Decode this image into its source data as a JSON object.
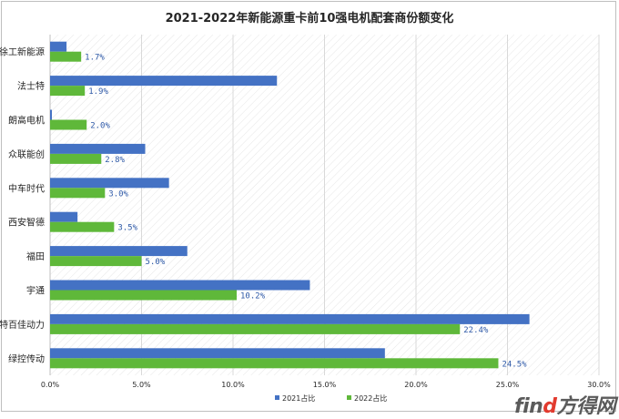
{
  "chart_data": {
    "type": "bar",
    "orientation": "horizontal",
    "title": "2021-2022年新能源重卡前10强电机配套商份额变化",
    "categories": [
      "徐工新能源",
      "法士特",
      "朗高电机",
      "众联能创",
      "中车时代",
      "西安智德",
      "福田",
      "宇通",
      "特百佳动力",
      "绿控传动"
    ],
    "series": [
      {
        "name": "2021占比",
        "color": "#4472c4",
        "values": [
          0.9,
          12.4,
          0.1,
          5.2,
          6.5,
          1.5,
          7.5,
          14.2,
          26.2,
          18.3
        ]
      },
      {
        "name": "2022占比",
        "color": "#5fb83a",
        "values": [
          1.7,
          1.9,
          2.0,
          2.8,
          3.0,
          3.5,
          5.0,
          10.2,
          22.4,
          24.5
        ]
      }
    ],
    "data_labels_series": "2022占比",
    "data_labels": [
      "1.7%",
      "1.9%",
      "2.0%",
      "2.8%",
      "3.0%",
      "3.5%",
      "5.0%",
      "10.2%",
      "22.4%",
      "24.5%"
    ],
    "xlim": [
      0,
      30
    ],
    "x_ticks": [
      "0.0%",
      "5.0%",
      "10.0%",
      "15.0%",
      "20.0%",
      "25.0%",
      "30.0%"
    ],
    "grid": true,
    "legend_position": "bottom"
  },
  "watermark": {
    "text_main": "fin",
    "text_accent": "d",
    "text_cn": "方得网"
  }
}
